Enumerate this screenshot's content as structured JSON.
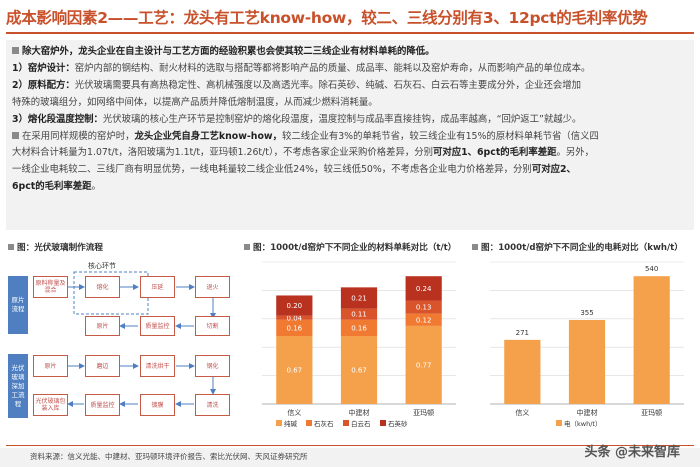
{
  "header": {
    "title": "成本影响因素2——工艺：龙头有工艺know-how，较二、三线分别有3、12pct的毛利率优势"
  },
  "textbox": {
    "p0_bold": "除大窑炉外，",
    "p0_bold2": "龙头企业在自主设计与工艺方面的经验积累也会使其较二三线企业有材料单耗的降低。",
    "p1_bold": "1）窑炉设计：",
    "p1": "窑炉内部的钢结构、耐火材料的选取与搭配等都将影响产品的质量、成品率、能耗以及窑炉寿命，从而影响产品的单位成本。",
    "p2_bold": "2）原料配方：",
    "p2": "光伏玻璃需要具有高热稳定性、高机械强度以及高透光率。除石英砂、纯碱、石灰石、白云石等主要成分外，企业还会增加",
    "p3": "特殊的玻璃组分，如网络中间体，以提高产品质并降低熔制温度，从而减少燃料消耗量。",
    "p4_bold": "3）熔化段温度控制：",
    "p4": "光伏玻璃的核心生产环节是控制窑炉的熔化段温度，温度控制与成品率直接挂钩，成品率越高，“回炉返工”就越少。",
    "p5a": "在采用同样规模的窑炉时，",
    "p5_bold": "龙头企业凭自身工艺know-how，",
    "p5b": "较二线企业有3%的单耗节省，较三线企业有15%的原材料单耗节省（信义四",
    "p6a": "大材料合计耗量为1.07t/t，洛阳玻璃为1.1t/t，亚玛顿1.26t/t），不考虑各家企业采购价格差异，分别",
    "p6_bold": "可对应1、6pct的毛利率差距",
    "p6b": "。另外，",
    "p7": "一线企业电耗较二、三线厂商有明显优势，一线电耗量较二线企业低24%，较三线低50%，不考虑各企业电力价格差异，分别",
    "p7_bold": "可对应2、",
    "p8_bold": "6pct的毛利率差距",
    "p8": "。"
  },
  "flowchart": {
    "panel_title": "图：光伏玻璃制作流程",
    "core_label": "核心环节",
    "side_raw": "原片\n流程",
    "side_deep": "光伏\n玻璃\n深加\n工流\n程",
    "row1": [
      "原料称量及混合",
      "熔化",
      "压延",
      "退火"
    ],
    "row2": [
      "原片",
      "质量监控",
      "切割"
    ],
    "row3": [
      "原片",
      "磨边",
      "清洗烘干",
      "钢化"
    ],
    "row4": [
      "光伏玻璃包装入库",
      "质量监控",
      "镀膜",
      "清洗"
    ]
  },
  "material_chart": {
    "panel_title": "图：1000t/d窑炉下不同企业的材料单耗对比（t/t）"
  },
  "power_chart": {
    "panel_title": "图：1000t/d窑炉下不同企业的电耗对比（kwh/t）"
  },
  "chart_data": [
    {
      "type": "bar",
      "stacked": true,
      "title": "图：1000t/d窑炉下不同企业的材料单耗对比（t/t）",
      "categories": [
        "信义",
        "中建材",
        "亚玛顿"
      ],
      "series": [
        {
          "name": "纯碱",
          "values": [
            0.67,
            0.67,
            0.77
          ],
          "color": "#f5a04a"
        },
        {
          "name": "石灰石",
          "values": [
            0.16,
            0.16,
            0.12
          ],
          "color": "#f07a32"
        },
        {
          "name": "白云石",
          "values": [
            0.04,
            0.11,
            0.13
          ],
          "color": "#d9532b"
        },
        {
          "name": "石英砂",
          "values": [
            0.2,
            0.21,
            0.24
          ],
          "color": "#b8321f"
        }
      ],
      "ylim": [
        0,
        1.4
      ],
      "grid": true,
      "legend": "bottom"
    },
    {
      "type": "bar",
      "title": "图：1000t/d窑炉下不同企业的电耗对比（kwh/t）",
      "categories": [
        "信义",
        "中建材",
        "亚玛顿"
      ],
      "series": [
        {
          "name": "电（kwh/t）",
          "values": [
            271,
            355,
            540
          ],
          "color": "#f5a04a"
        }
      ],
      "ylim": [
        0,
        600
      ],
      "grid": true,
      "legend": "bottom"
    }
  ],
  "footer": {
    "source": "资料来源：信义光能、中建材、亚玛顿环境评价报告、索比光伏网、天风证券研究所",
    "watermark": "头条 @未来智库"
  }
}
